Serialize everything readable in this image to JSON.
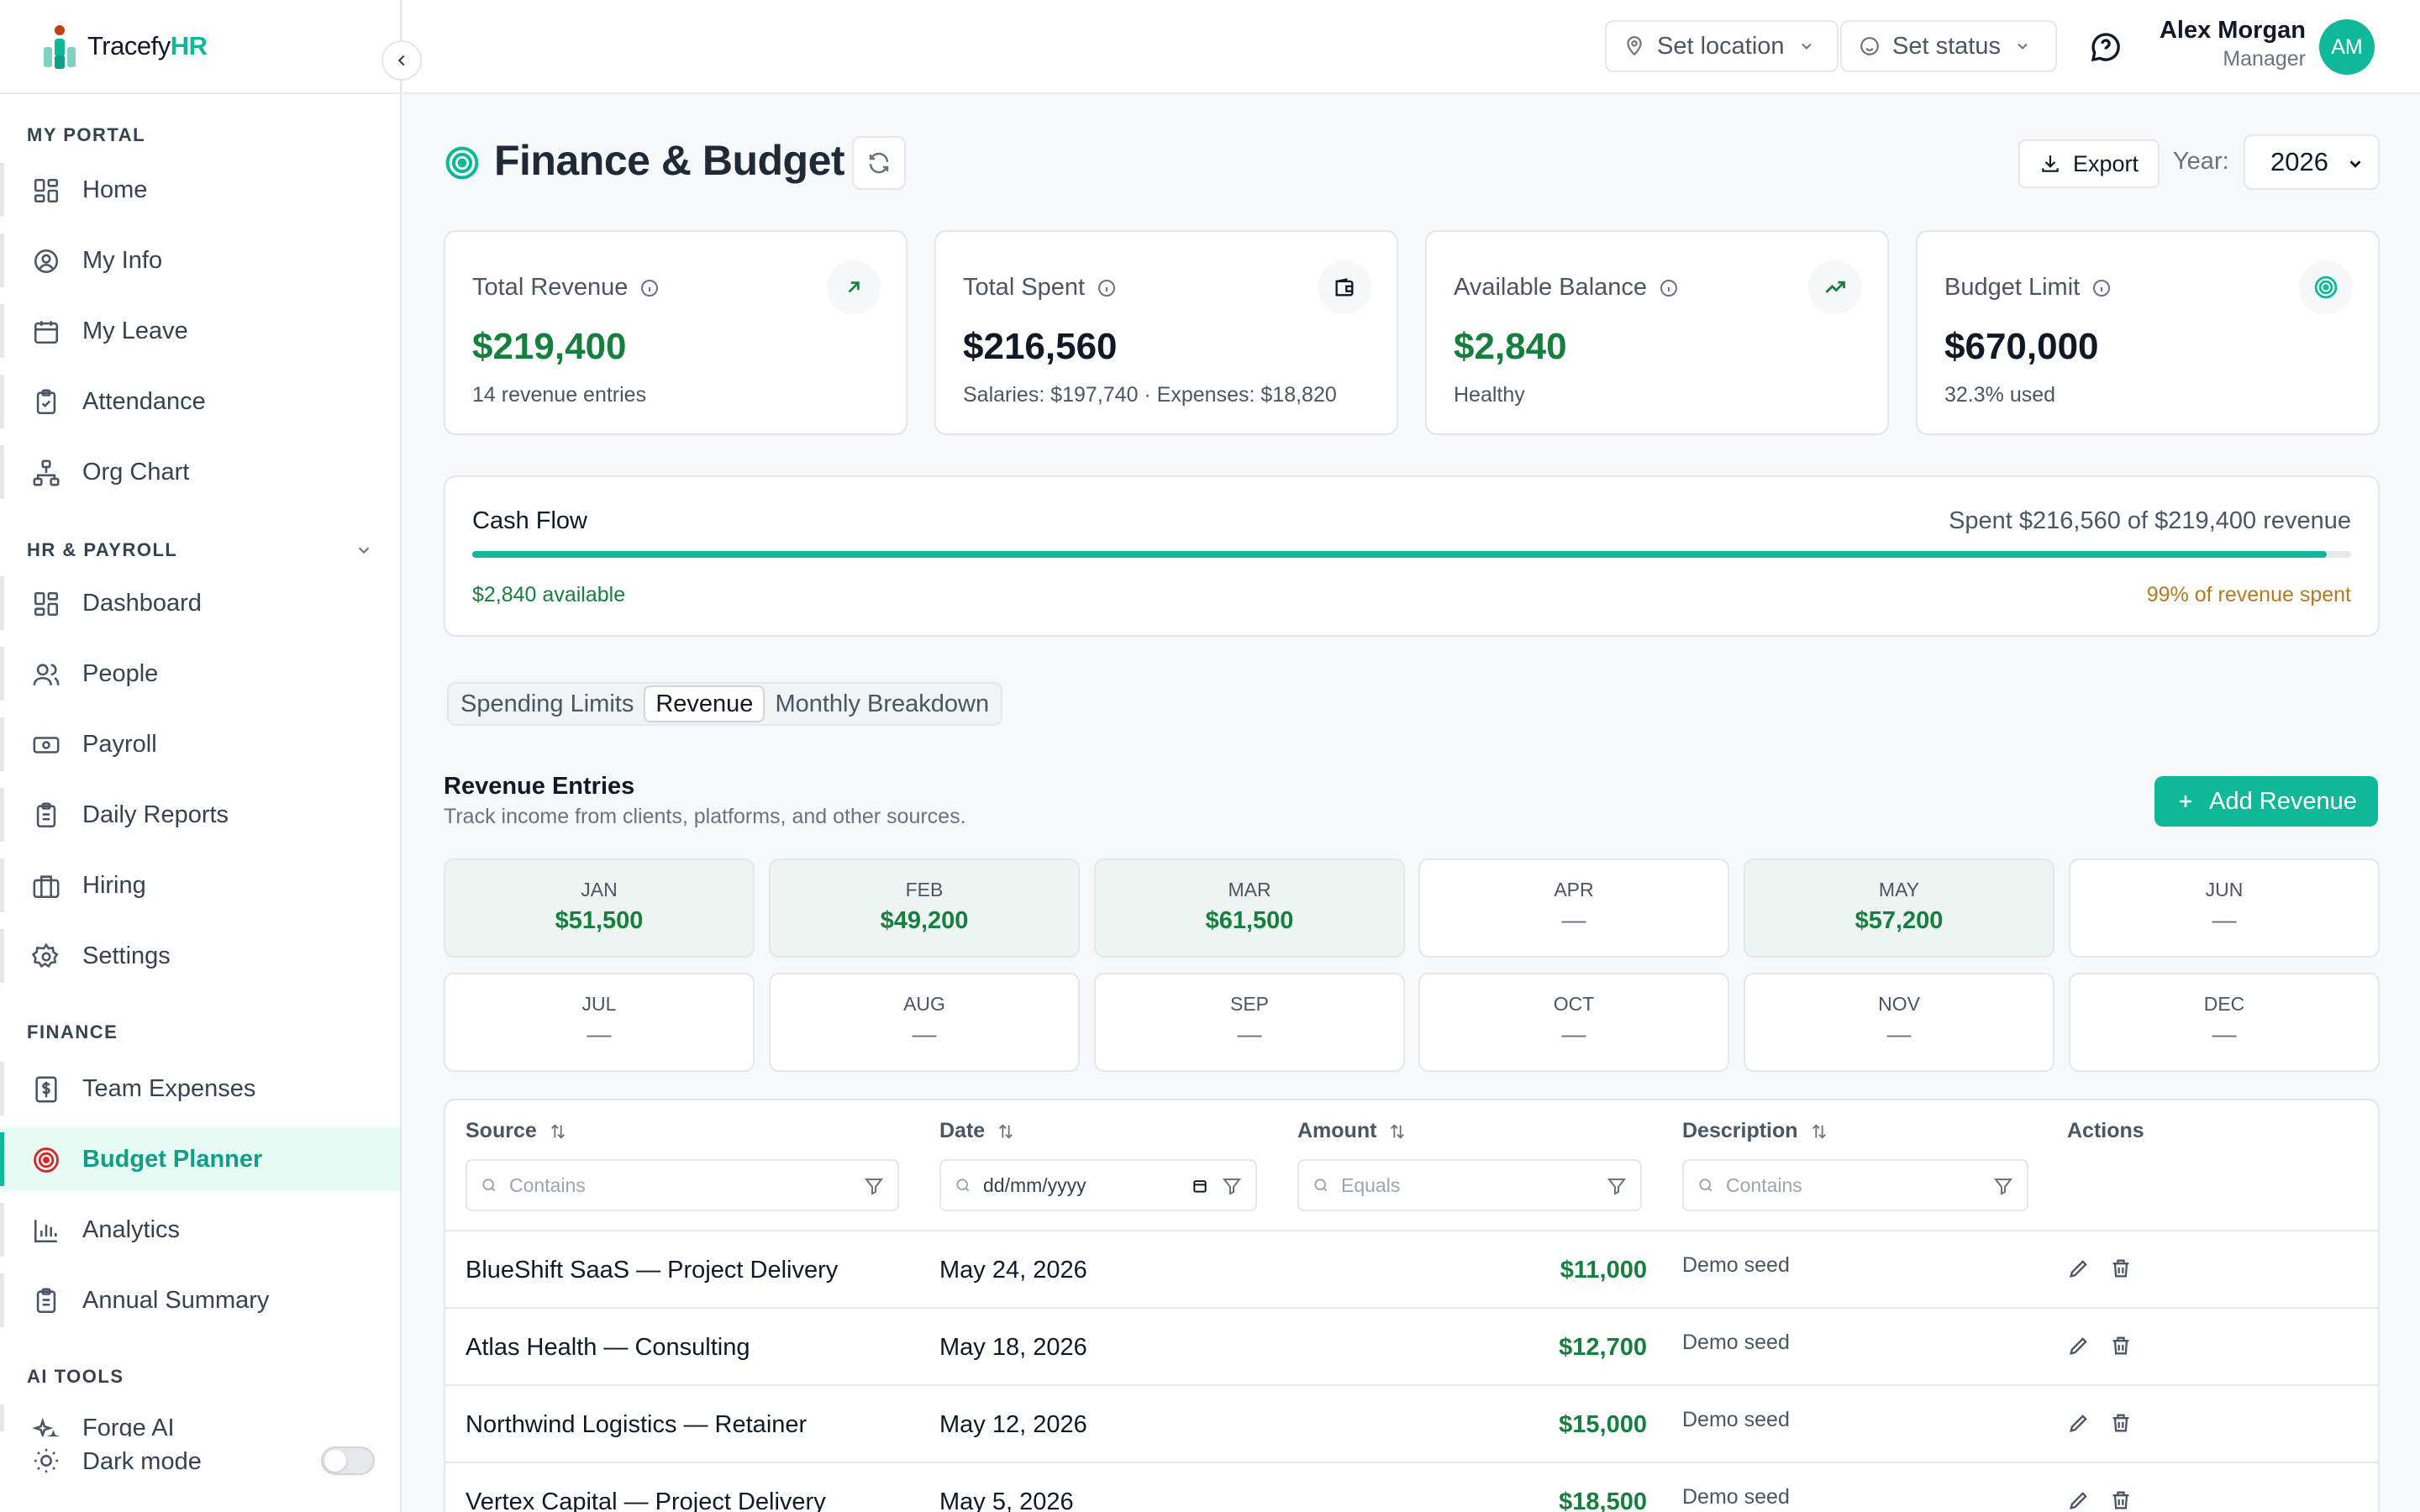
{
  "app": {
    "brand_main": "Tracefy",
    "brand_accent": "HR"
  },
  "colors": {
    "accent": "#10b89a",
    "positive": "#15803d",
    "warning": "#b7791f"
  },
  "topbar": {
    "location_label": "Set location",
    "status_label": "Set status",
    "user_name": "Alex Morgan",
    "user_role": "Manager",
    "avatar_initials": "AM"
  },
  "sidebar": {
    "sections": {
      "portal": "MY PORTAL",
      "hr": "HR & PAYROLL",
      "finance": "FINANCE",
      "ai": "AI TOOLS"
    },
    "portal_items": [
      {
        "label": "Home",
        "icon": "grid-icon"
      },
      {
        "label": "My Info",
        "icon": "user-circle-icon"
      },
      {
        "label": "My Leave",
        "icon": "calendar-icon"
      },
      {
        "label": "Attendance",
        "icon": "clipboard-check-icon"
      },
      {
        "label": "Org Chart",
        "icon": "org-chart-icon"
      }
    ],
    "hr_items": [
      {
        "label": "Dashboard",
        "icon": "grid-icon"
      },
      {
        "label": "People",
        "icon": "users-icon"
      },
      {
        "label": "Payroll",
        "icon": "banknote-icon"
      },
      {
        "label": "Daily Reports",
        "icon": "clipboard-list-icon"
      },
      {
        "label": "Hiring",
        "icon": "briefcase-icon"
      },
      {
        "label": "Settings",
        "icon": "gear-icon"
      }
    ],
    "finance_items": [
      {
        "label": "Team Expenses",
        "icon": "receipt-icon"
      },
      {
        "label": "Budget Planner",
        "icon": "target-icon",
        "active": true
      },
      {
        "label": "Analytics",
        "icon": "bar-chart-icon"
      },
      {
        "label": "Annual Summary",
        "icon": "clipboard-list-icon"
      }
    ],
    "ai_item_partial": "Forge AI",
    "dark_mode_label": "Dark mode",
    "dark_mode_on": false
  },
  "page": {
    "title": "Finance & Budget",
    "export_label": "Export",
    "year_label": "Year:",
    "year_value": "2026"
  },
  "cards": [
    {
      "title": "Total Revenue",
      "value": "$219,400",
      "sub": "14 revenue entries",
      "icon": "arrow-up-right-icon"
    },
    {
      "title": "Total Spent",
      "value": "$216,560",
      "sub": "Salaries: $197,740 · Expenses: $18,820",
      "icon": "wallet-icon"
    },
    {
      "title": "Available Balance",
      "value": "$2,840",
      "sub": "Healthy",
      "icon": "trending-up-icon"
    },
    {
      "title": "Budget Limit",
      "value": "$670,000",
      "sub": "32.3% used",
      "icon": "target-icon"
    }
  ],
  "cashflow": {
    "title": "Cash Flow",
    "summary": "Spent $216,560 of $219,400 revenue",
    "spent_fraction": 0.987,
    "available_note": "$2,840 available",
    "spent_note": "99% of revenue spent"
  },
  "tabs": [
    "Spending Limits",
    "Revenue",
    "Monthly Breakdown"
  ],
  "active_tab": "Revenue",
  "revenue": {
    "title": "Revenue Entries",
    "subtitle": "Track income from clients, platforms, and other sources.",
    "add_label": "Add Revenue"
  },
  "months": [
    {
      "name": "JAN",
      "value": "$51,500"
    },
    {
      "name": "FEB",
      "value": "$49,200"
    },
    {
      "name": "MAR",
      "value": "$61,500"
    },
    {
      "name": "APR",
      "value": "—"
    },
    {
      "name": "MAY",
      "value": "$57,200"
    },
    {
      "name": "JUN",
      "value": "—"
    },
    {
      "name": "JUL",
      "value": "—"
    },
    {
      "name": "AUG",
      "value": "—"
    },
    {
      "name": "SEP",
      "value": "—"
    },
    {
      "name": "OCT",
      "value": "—"
    },
    {
      "name": "NOV",
      "value": "—"
    },
    {
      "name": "DEC",
      "value": "—"
    }
  ],
  "table": {
    "headers": {
      "source": "Source",
      "date": "Date",
      "amount": "Amount",
      "description": "Description",
      "actions": "Actions"
    },
    "filters": {
      "source": "Contains",
      "date": "dd/mm/yyyy",
      "amount": "Equals",
      "description": "Contains"
    },
    "rows": [
      {
        "source": "BlueShift SaaS — Project Delivery",
        "date": "May 24, 2026",
        "amount": "$11,000",
        "description": "Demo seed"
      },
      {
        "source": "Atlas Health — Consulting",
        "date": "May 18, 2026",
        "amount": "$12,700",
        "description": "Demo seed"
      },
      {
        "source": "Northwind Logistics — Retainer",
        "date": "May 12, 2026",
        "amount": "$15,000",
        "description": "Demo seed"
      },
      {
        "source": "Vertex Capital — Project Delivery",
        "date": "May 5, 2026",
        "amount": "$18,500",
        "description": "Demo seed"
      }
    ]
  }
}
